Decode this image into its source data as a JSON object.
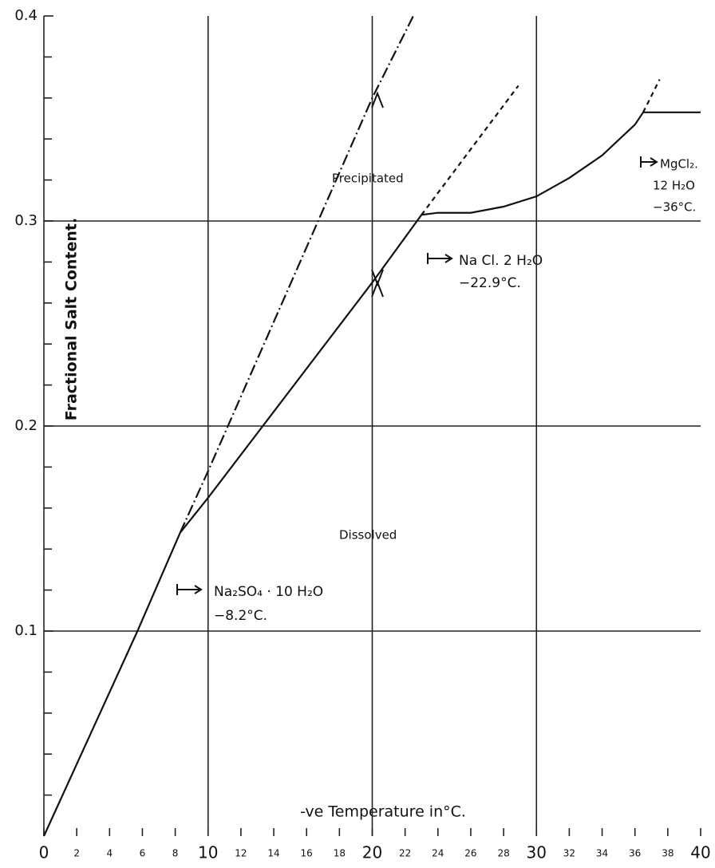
{
  "chart_data": {
    "type": "line",
    "x_label": "-ve Temperature in°C.",
    "y_label": "Fractional Salt Content.",
    "annotations": [
      "Precipitated",
      "Dissolved",
      "Na₂SO₄ · 10 H₂O",
      "−8.2°C.",
      "Na Cl. 2 H₂O",
      "−22.9°C.",
      "MgCl₂.",
      "12 H₂O",
      "−36°C."
    ],
    "xlim": [
      0,
      40
    ],
    "ylim": [
      0,
      0.4
    ],
    "xticks": [
      0,
      2,
      4,
      6,
      8,
      10,
      12,
      14,
      16,
      18,
      20,
      22,
      24,
      26,
      28,
      30,
      32,
      34,
      36,
      38,
      40
    ],
    "yticks": [
      0.1,
      0.2,
      0.3,
      0.4
    ],
    "yminor": [
      0.02,
      0.04,
      0.06,
      0.08,
      0.12,
      0.14,
      0.16,
      0.18,
      0.22,
      0.24,
      0.26,
      0.28,
      0.32,
      0.34,
      0.36,
      0.38
    ],
    "xgrid": [
      10,
      20,
      30
    ],
    "ygrid": [
      0.1,
      0.2,
      0.3
    ],
    "series": [
      {
        "color": "#111111",
        "dash": "solid",
        "x": [
          0,
          5.7,
          8.3,
          10,
          20,
          23,
          24,
          26,
          28,
          30,
          32,
          34,
          36,
          36.5,
          40
        ],
        "values": [
          0,
          0.1,
          0.148,
          0.165,
          0.27,
          0.303,
          0.304,
          0.304,
          0.307,
          0.312,
          0.321,
          0.332,
          0.347,
          0.353,
          0.353
        ]
      },
      {
        "color": "#111111",
        "dash": "dashed",
        "x": [
          23,
          28.9
        ],
        "values": [
          0.303,
          0.366
        ]
      },
      {
        "color": "#111111",
        "dash": "dashed",
        "x": [
          36.5,
          37.5
        ],
        "values": [
          0.353,
          0.369
        ]
      },
      {
        "color": "#111111",
        "dash": "dashdot",
        "x": [
          8.3,
          10,
          20,
          22.5
        ],
        "values": [
          0.148,
          0.178,
          0.36,
          0.4
        ]
      }
    ]
  }
}
